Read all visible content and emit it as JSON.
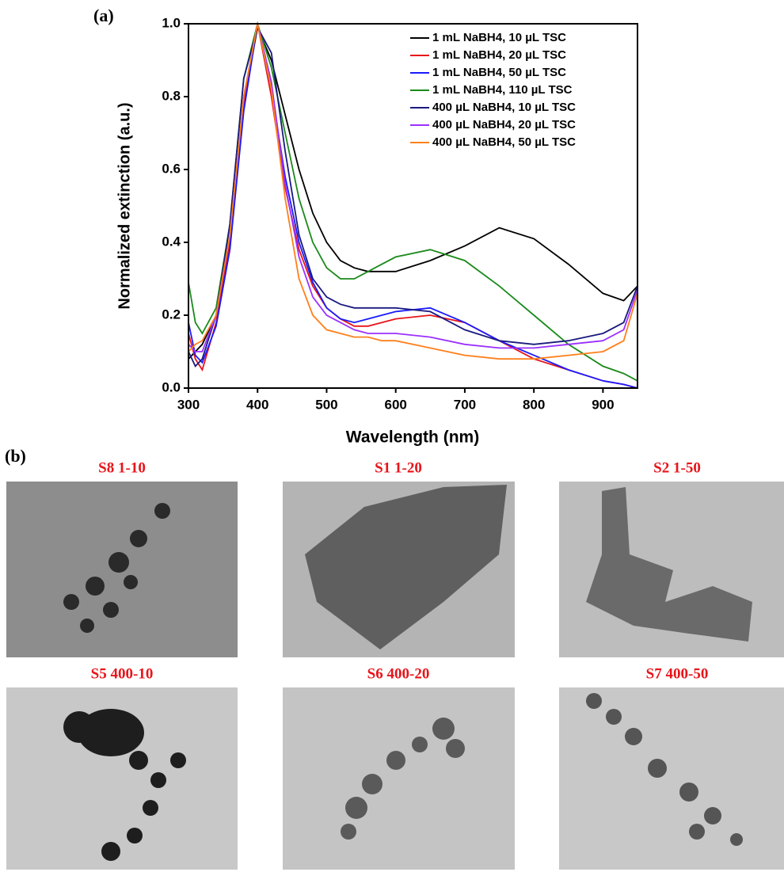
{
  "chart_data": {
    "type": "line",
    "panel_label": "(a)",
    "x_label": "Wavelength (nm)",
    "y_label": "Normalized extinction (a.u.)",
    "x": [
      300,
      310,
      320,
      340,
      360,
      380,
      400,
      420,
      440,
      460,
      480,
      500,
      520,
      540,
      560,
      580,
      600,
      650,
      700,
      750,
      800,
      850,
      900,
      930,
      950
    ],
    "series": [
      {
        "name": "1 mL NaBH4, 10 µL TSC",
        "color": "#000000",
        "values": [
          0.08,
          0.1,
          0.12,
          0.2,
          0.4,
          0.78,
          0.99,
          0.9,
          0.75,
          0.6,
          0.48,
          0.4,
          0.35,
          0.33,
          0.32,
          0.32,
          0.32,
          0.35,
          0.39,
          0.44,
          0.41,
          0.34,
          0.26,
          0.24,
          0.28
        ]
      },
      {
        "name": "1 mL NaBH4, 20 µL TSC",
        "color": "#e8141a",
        "values": [
          0.15,
          0.08,
          0.05,
          0.18,
          0.4,
          0.78,
          1.0,
          0.8,
          0.55,
          0.38,
          0.28,
          0.22,
          0.19,
          0.17,
          0.17,
          0.18,
          0.19,
          0.2,
          0.18,
          0.13,
          0.08,
          0.05,
          0.02,
          0.01,
          0.0
        ]
      },
      {
        "name": "1 mL NaBH4, 50 µL TSC",
        "color": "#1a1aff",
        "values": [
          0.18,
          0.09,
          0.07,
          0.17,
          0.38,
          0.76,
          1.0,
          0.82,
          0.58,
          0.4,
          0.29,
          0.22,
          0.19,
          0.18,
          0.19,
          0.2,
          0.21,
          0.22,
          0.18,
          0.13,
          0.09,
          0.05,
          0.02,
          0.01,
          0.0
        ]
      },
      {
        "name": "1 mL NaBH4, 110 µL TSC",
        "color": "#1a8a1a",
        "values": [
          0.29,
          0.18,
          0.15,
          0.22,
          0.45,
          0.85,
          1.0,
          0.88,
          0.7,
          0.52,
          0.4,
          0.33,
          0.3,
          0.3,
          0.32,
          0.34,
          0.36,
          0.38,
          0.35,
          0.28,
          0.2,
          0.12,
          0.06,
          0.04,
          0.02
        ]
      },
      {
        "name": "400 µL NaBH4, 10 µL TSC",
        "color": "#1a1a80",
        "values": [
          0.1,
          0.06,
          0.08,
          0.2,
          0.45,
          0.85,
          0.99,
          0.92,
          0.65,
          0.42,
          0.3,
          0.25,
          0.23,
          0.22,
          0.22,
          0.22,
          0.22,
          0.21,
          0.16,
          0.13,
          0.12,
          0.13,
          0.15,
          0.18,
          0.28
        ]
      },
      {
        "name": "400 µL NaBH4, 20 µL TSC",
        "color": "#9b30ff",
        "values": [
          0.12,
          0.1,
          0.1,
          0.2,
          0.42,
          0.8,
          1.0,
          0.84,
          0.56,
          0.36,
          0.25,
          0.2,
          0.18,
          0.16,
          0.15,
          0.15,
          0.15,
          0.14,
          0.12,
          0.11,
          0.11,
          0.12,
          0.13,
          0.16,
          0.27
        ]
      },
      {
        "name": "400 µL NaBH4, 50 µL TSC",
        "color": "#ff7f1a",
        "values": [
          0.1,
          0.12,
          0.13,
          0.2,
          0.42,
          0.8,
          1.0,
          0.82,
          0.52,
          0.3,
          0.2,
          0.16,
          0.15,
          0.14,
          0.14,
          0.13,
          0.13,
          0.11,
          0.09,
          0.08,
          0.08,
          0.09,
          0.1,
          0.13,
          0.26
        ]
      }
    ],
    "xlim": [
      300,
      950
    ],
    "xticks": [
      300,
      400,
      500,
      600,
      700,
      800,
      900
    ],
    "ylim": [
      0,
      1.0
    ],
    "yticks": [
      {
        "value": 0,
        "label": "0.0"
      },
      0.2,
      0.4,
      0.6,
      0.8,
      {
        "value": 1.0,
        "label": "1.0"
      }
    ],
    "legend": "upper-right"
  },
  "figure_b": {
    "label": "(b)",
    "panels": [
      {
        "title": "S8 1-10"
      },
      {
        "title": "S1 1-20"
      },
      {
        "title": "S2 1-50"
      },
      {
        "title": "S5 400-10"
      },
      {
        "title": "S6 400-20"
      },
      {
        "title": "S7 400-50"
      }
    ]
  }
}
